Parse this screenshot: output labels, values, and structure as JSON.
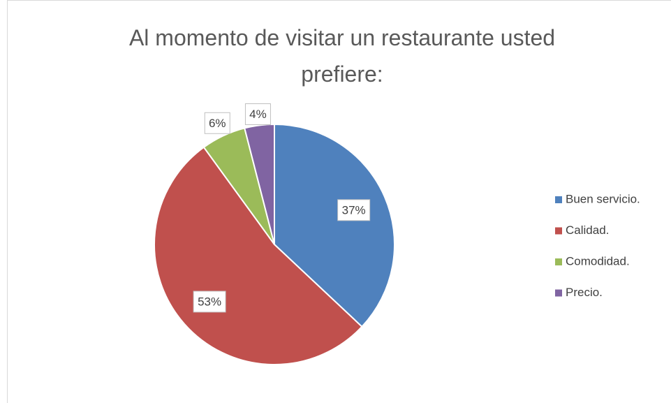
{
  "chart_data": {
    "type": "pie",
    "title": "Al momento de visitar un restaurante usted prefiere:",
    "categories": [
      "Buen servicio.",
      "Calidad.",
      "Comodidad.",
      "Precio."
    ],
    "values": [
      37,
      53,
      6,
      4
    ],
    "value_labels": [
      "37%",
      "53%",
      "6%",
      "4%"
    ],
    "colors": [
      "#4f81bd",
      "#c0504d",
      "#9bbb59",
      "#8064a2"
    ],
    "legend": "right"
  }
}
